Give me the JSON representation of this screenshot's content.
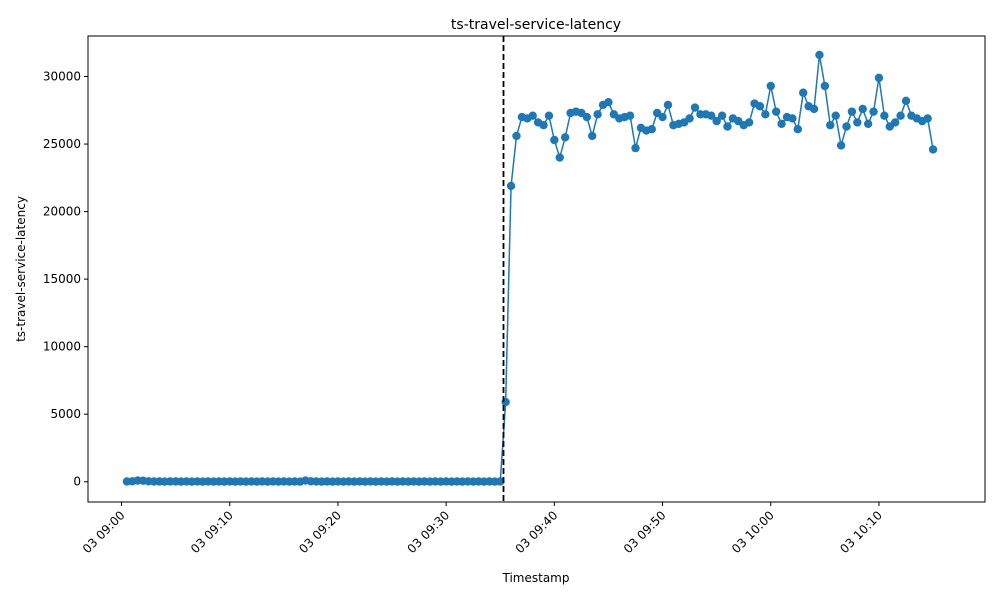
{
  "chart_data": {
    "type": "line",
    "title": "ts-travel-service-latency",
    "xlabel": "Timestamp",
    "ylabel": "ts-travel-service-latency",
    "x_axis": {
      "unit": "minutes after 03 09:00",
      "range": [
        -3.1,
        79.8
      ],
      "ticks": [
        {
          "value": 0,
          "label": "03 09:00"
        },
        {
          "value": 10,
          "label": "03 09:10"
        },
        {
          "value": 20,
          "label": "03 09:20"
        },
        {
          "value": 30,
          "label": "03 09:30"
        },
        {
          "value": 40,
          "label": "03 09:40"
        },
        {
          "value": 50,
          "label": "03 09:50"
        },
        {
          "value": 60,
          "label": "03 10:00"
        },
        {
          "value": 70,
          "label": "03 10:10"
        }
      ]
    },
    "y_axis": {
      "range": [
        -1500,
        33000
      ],
      "ticks": [
        0,
        5000,
        10000,
        15000,
        20000,
        25000,
        30000
      ]
    },
    "vline": {
      "x": 35.3,
      "style": "dashed",
      "color": "#000000"
    },
    "series_color": "#1f77b4",
    "grid": false,
    "series": [
      {
        "values": [
          [
            0.5,
            20
          ],
          [
            1.0,
            30
          ],
          [
            1.5,
            90
          ],
          [
            2.0,
            80
          ],
          [
            2.5,
            30
          ],
          [
            3.0,
            20
          ],
          [
            3.5,
            20
          ],
          [
            4.0,
            10
          ],
          [
            4.5,
            20
          ],
          [
            5.0,
            20
          ],
          [
            5.5,
            10
          ],
          [
            6.0,
            20
          ],
          [
            6.5,
            10
          ],
          [
            7.0,
            20
          ],
          [
            7.5,
            10
          ],
          [
            8.0,
            20
          ],
          [
            8.5,
            10
          ],
          [
            9.0,
            20
          ],
          [
            9.5,
            10
          ],
          [
            10.0,
            20
          ],
          [
            10.5,
            10
          ],
          [
            11.0,
            20
          ],
          [
            11.5,
            10
          ],
          [
            12.0,
            20
          ],
          [
            12.5,
            10
          ],
          [
            13.0,
            20
          ],
          [
            13.5,
            10
          ],
          [
            14.0,
            20
          ],
          [
            14.5,
            10
          ],
          [
            15.0,
            20
          ],
          [
            15.5,
            10
          ],
          [
            16.0,
            20
          ],
          [
            16.5,
            10
          ],
          [
            17.0,
            90
          ],
          [
            17.5,
            30
          ],
          [
            18.0,
            20
          ],
          [
            18.5,
            10
          ],
          [
            19.0,
            20
          ],
          [
            19.5,
            10
          ],
          [
            20.0,
            20
          ],
          [
            20.5,
            10
          ],
          [
            21.0,
            20
          ],
          [
            21.5,
            10
          ],
          [
            22.0,
            20
          ],
          [
            22.5,
            10
          ],
          [
            23.0,
            20
          ],
          [
            23.5,
            10
          ],
          [
            24.0,
            20
          ],
          [
            24.5,
            10
          ],
          [
            25.0,
            20
          ],
          [
            25.5,
            10
          ],
          [
            26.0,
            20
          ],
          [
            26.5,
            10
          ],
          [
            27.0,
            20
          ],
          [
            27.5,
            10
          ],
          [
            28.0,
            20
          ],
          [
            28.5,
            10
          ],
          [
            29.0,
            20
          ],
          [
            29.5,
            10
          ],
          [
            30.0,
            20
          ],
          [
            30.5,
            10
          ],
          [
            31.0,
            20
          ],
          [
            31.5,
            10
          ],
          [
            32.0,
            20
          ],
          [
            32.5,
            10
          ],
          [
            33.0,
            20
          ],
          [
            33.5,
            10
          ],
          [
            34.0,
            20
          ],
          [
            34.5,
            10
          ],
          [
            35.0,
            20
          ],
          [
            35.5,
            5900
          ],
          [
            36.0,
            21900
          ],
          [
            36.5,
            25600
          ],
          [
            37.0,
            27000
          ],
          [
            37.5,
            26900
          ],
          [
            38.0,
            27100
          ],
          [
            38.5,
            26600
          ],
          [
            39.0,
            26400
          ],
          [
            39.5,
            27100
          ],
          [
            40.0,
            25300
          ],
          [
            40.5,
            24000
          ],
          [
            41.0,
            25500
          ],
          [
            41.5,
            27300
          ],
          [
            42.0,
            27400
          ],
          [
            42.5,
            27300
          ],
          [
            43.0,
            27000
          ],
          [
            43.5,
            25600
          ],
          [
            44.0,
            27200
          ],
          [
            44.5,
            27900
          ],
          [
            45.0,
            28100
          ],
          [
            45.5,
            27200
          ],
          [
            46.0,
            26900
          ],
          [
            46.5,
            27000
          ],
          [
            47.0,
            27100
          ],
          [
            47.5,
            24700
          ],
          [
            48.0,
            26200
          ],
          [
            48.5,
            26000
          ],
          [
            49.0,
            26100
          ],
          [
            49.5,
            27300
          ],
          [
            50.0,
            27000
          ],
          [
            50.5,
            27900
          ],
          [
            51.0,
            26400
          ],
          [
            51.5,
            26500
          ],
          [
            52.0,
            26600
          ],
          [
            52.5,
            26900
          ],
          [
            53.0,
            27700
          ],
          [
            53.5,
            27200
          ],
          [
            54.0,
            27200
          ],
          [
            54.5,
            27100
          ],
          [
            55.0,
            26700
          ],
          [
            55.5,
            27100
          ],
          [
            56.0,
            26300
          ],
          [
            56.5,
            26900
          ],
          [
            57.0,
            26700
          ],
          [
            57.5,
            26400
          ],
          [
            58.0,
            26600
          ],
          [
            58.5,
            28000
          ],
          [
            59.0,
            27800
          ],
          [
            59.5,
            27200
          ],
          [
            60.0,
            29300
          ],
          [
            60.5,
            27400
          ],
          [
            61.0,
            26500
          ],
          [
            61.5,
            27000
          ],
          [
            62.0,
            26900
          ],
          [
            62.5,
            26100
          ],
          [
            63.0,
            28800
          ],
          [
            63.5,
            27800
          ],
          [
            64.0,
            27600
          ],
          [
            64.5,
            31600
          ],
          [
            65.0,
            29300
          ],
          [
            65.5,
            26400
          ],
          [
            66.0,
            27100
          ],
          [
            66.5,
            24900
          ],
          [
            67.0,
            26300
          ],
          [
            67.5,
            27400
          ],
          [
            68.0,
            26600
          ],
          [
            68.5,
            27600
          ],
          [
            69.0,
            26500
          ],
          [
            69.5,
            27400
          ],
          [
            70.0,
            29900
          ],
          [
            70.5,
            27100
          ],
          [
            71.0,
            26300
          ],
          [
            71.5,
            26600
          ],
          [
            72.0,
            27100
          ],
          [
            72.5,
            28200
          ],
          [
            73.0,
            27100
          ],
          [
            73.5,
            26900
          ],
          [
            74.0,
            26700
          ],
          [
            74.5,
            26900
          ],
          [
            75.0,
            24600
          ]
        ]
      }
    ]
  }
}
